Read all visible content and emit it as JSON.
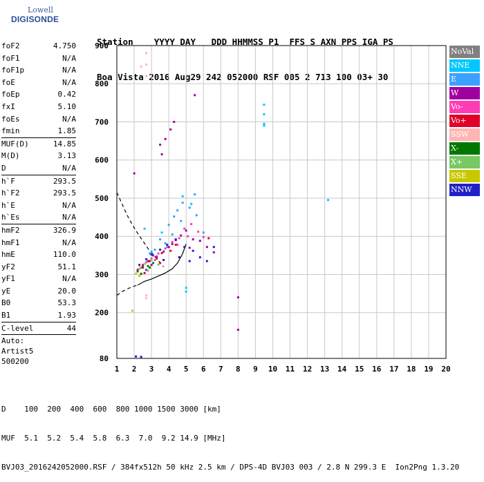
{
  "logo": {
    "line1": "Lowell",
    "line2": "DIGISONDE"
  },
  "header": {
    "line1": "Station    YYYY DAY   DDD HHMMSS P1  FFS S AXN PPS IGA PS",
    "line2": "Boa Vista 2016 Aug29 242 052000 RSF 005 2 713 100 03+ 30"
  },
  "params": [
    {
      "k": "foF2",
      "v": "4.750"
    },
    {
      "k": "foF1",
      "v": "N/A"
    },
    {
      "k": "foF1p",
      "v": "N/A"
    },
    {
      "k": "foE",
      "v": "N/A"
    },
    {
      "k": "foEp",
      "v": "0.42"
    },
    {
      "k": "fxI",
      "v": "5.10"
    },
    {
      "k": "foEs",
      "v": "N/A"
    },
    {
      "k": "fmin",
      "v": "1.85"
    },
    {
      "sep": true
    },
    {
      "k": "MUF(D)",
      "v": "14.85"
    },
    {
      "k": "M(D)",
      "v": "3.13"
    },
    {
      "k": "D",
      "v": "N/A"
    },
    {
      "sep": true
    },
    {
      "k": "h`F",
      "v": "293.5"
    },
    {
      "k": "h`F2",
      "v": "293.5"
    },
    {
      "k": "h`E",
      "v": "N/A"
    },
    {
      "k": "h`Es",
      "v": "N/A"
    },
    {
      "sep": true
    },
    {
      "k": "hmF2",
      "v": "326.9"
    },
    {
      "k": "hmF1",
      "v": "N/A"
    },
    {
      "k": "hmE",
      "v": "110.0"
    },
    {
      "k": "yF2",
      "v": "51.1"
    },
    {
      "k": "yF1",
      "v": "N/A"
    },
    {
      "k": "yE",
      "v": "20.0"
    },
    {
      "k": "B0",
      "v": "53.3"
    },
    {
      "k": "B1",
      "v": "1.93"
    },
    {
      "sep": true
    },
    {
      "k": "C-level",
      "v": "44"
    },
    {
      "sep": true
    }
  ],
  "auto": {
    "line1": "Auto:",
    "line2": "Artist5",
    "line3": "500200"
  },
  "footer": {
    "line1": "D    100  200  400  600  800 1000 1500 3000 [km]",
    "line2": "MUF  5.1  5.2  5.4  5.8  6.3  7.0  9.2 14.9 [MHz]",
    "line3": "BVJ03_2016242052000.RSF / 384fx512h 50 kHz 2.5 km / DPS-4D BVJ03 003 / 2.8 N 299.3 E  Ion2Png 1.3.20"
  },
  "legend": [
    {
      "label": "NoVal",
      "color": "#808080"
    },
    {
      "label": "NNE",
      "color": "#00c8ff"
    },
    {
      "label": "E",
      "color": "#3ca0ff"
    },
    {
      "label": "W",
      "color": "#a000a0"
    },
    {
      "label": "Vo-",
      "color": "#ff3cb4"
    },
    {
      "label": "Vo+",
      "color": "#e0002a"
    },
    {
      "label": "SSW",
      "color": "#ffb4b4"
    },
    {
      "label": "X-",
      "color": "#007800"
    },
    {
      "label": "X+",
      "color": "#78c864"
    },
    {
      "label": "SSE",
      "color": "#c8c800"
    },
    {
      "label": "NNW",
      "color": "#2020c8"
    }
  ],
  "chart_data": {
    "type": "scatter",
    "xlim": [
      1,
      20
    ],
    "ylim": [
      80,
      900
    ],
    "x_ticks": [
      "1",
      "2",
      "3",
      "4",
      "5",
      "6",
      "7",
      "8",
      "9",
      "10",
      "11",
      "12",
      "13",
      "14",
      "15",
      "16",
      "17",
      "18",
      "19",
      "20"
    ],
    "y_ticks": [
      "80",
      "200",
      "300",
      "400",
      "500",
      "600",
      "700",
      "800",
      "900"
    ],
    "grid": true,
    "series": [
      {
        "name": "NNE",
        "points": [
          [
            9.5,
            745
          ],
          [
            9.5,
            720
          ],
          [
            9.5,
            695
          ],
          [
            9.5,
            690
          ],
          [
            13.2,
            495
          ],
          [
            5.0,
            265
          ],
          [
            5.0,
            255
          ],
          [
            4.8,
            505
          ],
          [
            5.3,
            485
          ],
          [
            2.6,
            420
          ],
          [
            3.0,
            360
          ],
          [
            3.6,
            410
          ]
        ]
      },
      {
        "name": "E",
        "points": [
          [
            3.2,
            365
          ],
          [
            3.5,
            392
          ],
          [
            3.8,
            382
          ],
          [
            4.0,
            430
          ],
          [
            4.3,
            452
          ],
          [
            4.5,
            468
          ],
          [
            4.8,
            488
          ],
          [
            5.2,
            475
          ],
          [
            5.6,
            455
          ],
          [
            4.2,
            405
          ],
          [
            3.9,
            372
          ],
          [
            4.7,
            440
          ],
          [
            5.5,
            510
          ],
          [
            2.9,
            355
          ],
          [
            3.3,
            348
          ],
          [
            6.0,
            410
          ]
        ]
      },
      {
        "name": "W",
        "points": [
          [
            2.5,
            320
          ],
          [
            2.8,
            335
          ],
          [
            3.1,
            350
          ],
          [
            3.3,
            345
          ],
          [
            3.7,
            360
          ],
          [
            4.0,
            372
          ],
          [
            4.4,
            390
          ],
          [
            4.7,
            402
          ],
          [
            5.0,
            415
          ],
          [
            5.4,
            392
          ],
          [
            5.8,
            388
          ],
          [
            6.2,
            372
          ],
          [
            6.6,
            358
          ],
          [
            3.5,
            640
          ],
          [
            3.8,
            655
          ],
          [
            4.1,
            680
          ],
          [
            4.3,
            700
          ],
          [
            3.6,
            615
          ],
          [
            2.7,
            312
          ],
          [
            3.0,
            325
          ],
          [
            4.2,
            380
          ],
          [
            5.2,
            370
          ],
          [
            8.0,
            240
          ],
          [
            8.0,
            155
          ],
          [
            5.5,
            770
          ],
          [
            2.0,
            565
          ]
        ]
      },
      {
        "name": "Vo-",
        "points": [
          [
            2.4,
            318
          ],
          [
            2.7,
            332
          ],
          [
            3.0,
            342
          ],
          [
            3.4,
            355
          ],
          [
            3.8,
            368
          ],
          [
            4.2,
            385
          ],
          [
            4.6,
            395
          ],
          [
            4.9,
            420
          ],
          [
            5.3,
            432
          ],
          [
            5.7,
            412
          ],
          [
            6.0,
            398
          ],
          [
            3.2,
            338
          ],
          [
            4.5,
            378
          ],
          [
            5.1,
            400
          ]
        ]
      },
      {
        "name": "Vo+",
        "points": [
          [
            2.2,
            312
          ],
          [
            2.5,
            325
          ],
          [
            2.9,
            335
          ],
          [
            3.3,
            342
          ],
          [
            3.6,
            356
          ],
          [
            4.1,
            362
          ],
          [
            4.4,
            378
          ],
          [
            6.3,
            395
          ],
          [
            2.6,
            304
          ],
          [
            3.5,
            330
          ]
        ]
      },
      {
        "name": "SSW",
        "points": [
          [
            2.7,
            880
          ],
          [
            2.7,
            850
          ],
          [
            2.7,
            820
          ],
          [
            2.4,
            845
          ],
          [
            2.7,
            245
          ],
          [
            2.7,
            238
          ],
          [
            2.4,
            300
          ]
        ]
      },
      {
        "name": "X-",
        "points": [
          [
            2.2,
            308
          ],
          [
            2.5,
            318
          ],
          [
            2.8,
            322
          ],
          [
            3.1,
            330
          ],
          [
            2.9,
            318
          ],
          [
            2.4,
            302
          ]
        ]
      },
      {
        "name": "X+",
        "points": [
          [
            2.3,
            315
          ],
          [
            2.6,
            328
          ],
          [
            3.0,
            338
          ],
          [
            2.8,
            310
          ],
          [
            3.4,
            326
          ]
        ]
      },
      {
        "name": "SSE",
        "points": [
          [
            1.9,
            205
          ],
          [
            2.1,
            302
          ],
          [
            2.3,
            296
          ]
        ]
      },
      {
        "name": "NNW",
        "points": [
          [
            2.3,
            325
          ],
          [
            2.7,
            340
          ],
          [
            3.0,
            352
          ],
          [
            3.5,
            365
          ],
          [
            3.9,
            378
          ],
          [
            4.4,
            392
          ],
          [
            4.9,
            372
          ],
          [
            5.4,
            362
          ],
          [
            5.8,
            345
          ],
          [
            6.2,
            335
          ],
          [
            3.7,
            338
          ],
          [
            4.6,
            345
          ],
          [
            5.2,
            335
          ],
          [
            6.6,
            372
          ],
          [
            2.1,
            85
          ],
          [
            2.4,
            84
          ]
        ]
      }
    ],
    "curves": [
      {
        "kind": "dashed",
        "points": [
          [
            1.0,
            515
          ],
          [
            1.3,
            485
          ],
          [
            1.6,
            455
          ],
          [
            1.9,
            430
          ],
          [
            2.2,
            408
          ],
          [
            2.5,
            388
          ],
          [
            2.8,
            368
          ],
          [
            3.1,
            352
          ],
          [
            3.4,
            336
          ],
          [
            3.7,
            320
          ]
        ]
      },
      {
        "kind": "dashed",
        "points": [
          [
            1.0,
            245
          ],
          [
            1.3,
            255
          ],
          [
            1.6,
            262
          ],
          [
            1.9,
            268
          ],
          [
            2.2,
            272
          ]
        ]
      },
      {
        "kind": "solid",
        "points": [
          [
            2.2,
            272
          ],
          [
            2.6,
            282
          ],
          [
            3.0,
            288
          ],
          [
            3.4,
            296
          ],
          [
            3.8,
            304
          ],
          [
            4.2,
            315
          ],
          [
            4.5,
            330
          ],
          [
            4.8,
            355
          ],
          [
            5.0,
            380
          ]
        ]
      }
    ]
  }
}
